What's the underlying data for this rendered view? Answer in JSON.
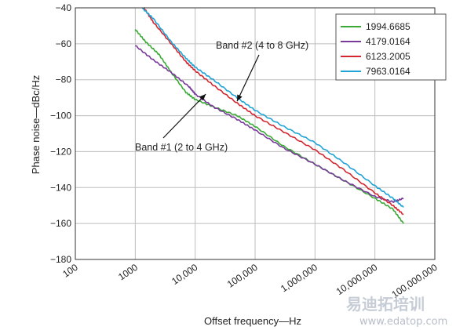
{
  "chart_data": {
    "type": "line",
    "title": "",
    "xlabel": "Offset frequency—Hz",
    "ylabel": "Phase noise—dBc/Hz",
    "x_scale": "log",
    "xlim": [
      100,
      100000000
    ],
    "ylim": [
      -180,
      -40
    ],
    "x_ticks": [
      100,
      1000,
      10000,
      100000,
      1000000,
      10000000,
      100000000
    ],
    "x_tick_labels": [
      "100",
      "1000",
      "10,000",
      "100,000",
      "1,000,000",
      "10,000,000",
      "100,000,000"
    ],
    "y_ticks": [
      -40,
      -60,
      -80,
      -100,
      -120,
      -140,
      -160,
      -180
    ],
    "y_tick_labels": [
      "−40",
      "−60",
      "−80",
      "−100",
      "−120",
      "−140",
      "−160",
      "−180"
    ],
    "grid": true,
    "legend_position": "top-right",
    "series": [
      {
        "name": "1994.6685",
        "color": "#3aaa35",
        "x": [
          1000,
          1500,
          2500,
          4000,
          7000,
          10000,
          20000,
          50000,
          100000,
          300000,
          1000000,
          3000000,
          10000000,
          20000000,
          30000000
        ],
        "y": [
          -52,
          -59,
          -66,
          -76,
          -87,
          -91,
          -95,
          -100,
          -106,
          -117,
          -127,
          -136,
          -146,
          -152,
          -160
        ]
      },
      {
        "name": "4179.0164",
        "color": "#7a3a9a",
        "x": [
          1000,
          2000,
          4000,
          8000,
          10000,
          20000,
          50000,
          100000,
          300000,
          1000000,
          3000000,
          10000000,
          20000000,
          30000000
        ],
        "y": [
          -61,
          -69,
          -76,
          -84,
          -88,
          -95,
          -102,
          -108,
          -118,
          -127,
          -136,
          -145,
          -148,
          -146
        ]
      },
      {
        "name": "6123.2005",
        "color": "#d22630",
        "x": [
          1400,
          2000,
          4000,
          7000,
          10000,
          20000,
          50000,
          100000,
          300000,
          1000000,
          3000000,
          10000000,
          20000000,
          30000000
        ],
        "y": [
          -40,
          -48,
          -60,
          -70,
          -75,
          -83,
          -93,
          -100,
          -109,
          -119,
          -130,
          -143,
          -150,
          -155
        ]
      },
      {
        "name": "7963.0164",
        "color": "#1fa3d6",
        "x": [
          1300,
          2000,
          4000,
          7000,
          10000,
          20000,
          50000,
          100000,
          300000,
          1000000,
          3000000,
          10000000,
          20000000,
          30000000
        ],
        "y": [
          -40,
          -46,
          -59,
          -68,
          -73,
          -80,
          -90,
          -97,
          -106,
          -115,
          -126,
          -139,
          -146,
          -151
        ]
      }
    ],
    "annotations": [
      {
        "text": "Band #2 (4 to 8 GHz)",
        "arrow_to": [
          50000,
          -92
        ]
      },
      {
        "text": "Band #1 (2 to 4 GHz)",
        "arrow_to": [
          15000,
          -88
        ]
      }
    ]
  },
  "watermark": {
    "chinese": "易迪拓培训",
    "url": "www.edatop.com"
  }
}
